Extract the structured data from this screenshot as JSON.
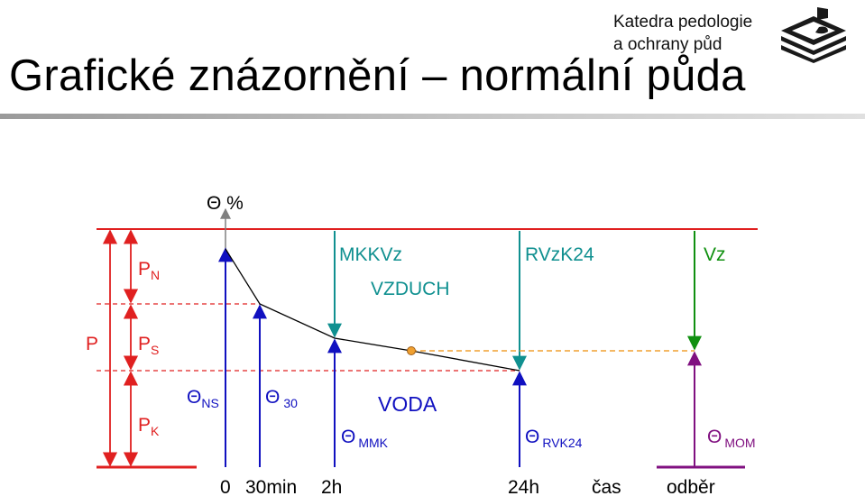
{
  "title": "Grafické znázornění – normální půda",
  "org": {
    "line1": "Katedra pedologie",
    "line2": "a ochrany půd"
  },
  "colors": {
    "red": "#e02020",
    "blue": "#1010c0",
    "teal": "#109090",
    "green": "#109010",
    "purple": "#801080",
    "orange": "#f0a030",
    "axis": "#808080",
    "curve": "#000000"
  },
  "diagram": {
    "y_axis_label": "Θ %",
    "left_labels": {
      "P": "P",
      "PN": "P",
      "PN_sub": "N",
      "PS": "P",
      "PS_sub": "S",
      "PK": "P",
      "PK_sub": "K"
    },
    "regions": {
      "air": "VZDUCH",
      "water": "VODA"
    },
    "top_labels": {
      "mkkvz": "MKKVz",
      "rvzk24": "RVzK24",
      "vz": "Vz"
    },
    "theta_labels": {
      "ns": {
        "main": "Θ",
        "sub": "NS"
      },
      "t30": {
        "main": "Θ",
        "sub": "30"
      },
      "mmk": {
        "main": "Θ",
        "sub": "MMK"
      },
      "rvk24": {
        "main": "Θ",
        "sub": "RVK24"
      },
      "mom": {
        "main": "Θ",
        "sub": "MOM"
      }
    },
    "x_labels": {
      "t0": "0",
      "t30": "30min",
      "t2h": "2h",
      "t24h": "24h",
      "time": "čas",
      "sample": "odběr"
    }
  }
}
